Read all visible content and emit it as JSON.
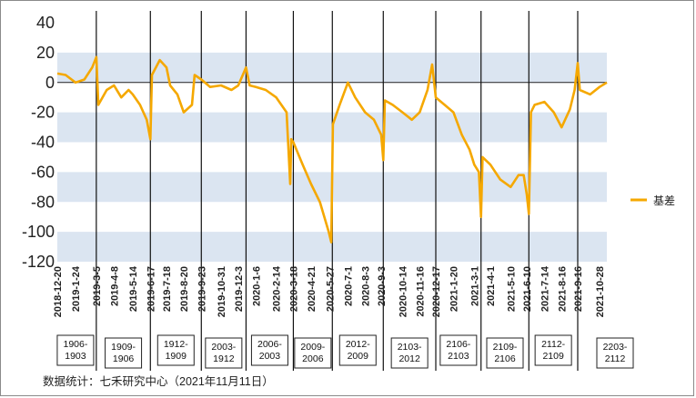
{
  "chart_data": {
    "type": "line",
    "title": "",
    "xlabel": "",
    "ylabel": "",
    "ylim": [
      -120,
      40
    ],
    "yticks": [
      40,
      20,
      0,
      -20,
      -40,
      -60,
      -80,
      -100,
      -120
    ],
    "grid": "alternating horizontal bands",
    "legend_position": "right",
    "series": [
      {
        "name": "基差",
        "color": "#f5a800",
        "points": [
          [
            "2018-12-20",
            6
          ],
          [
            "2019-1-5",
            5
          ],
          [
            "2019-1-24",
            0
          ],
          [
            "2019-2-10",
            2
          ],
          [
            "2019-2-25",
            10
          ],
          [
            "2019-3-5",
            17
          ],
          [
            "2019-3-9",
            -15
          ],
          [
            "2019-3-25",
            -5
          ],
          [
            "2019-4-8",
            -2
          ],
          [
            "2019-4-22",
            -10
          ],
          [
            "2019-5-6",
            -5
          ],
          [
            "2019-5-14",
            -8
          ],
          [
            "2019-5-28",
            -15
          ],
          [
            "2019-6-10",
            -25
          ],
          [
            "2019-6-17",
            -38
          ],
          [
            "2019-6-20",
            5
          ],
          [
            "2019-7-5",
            15
          ],
          [
            "2019-7-18",
            10
          ],
          [
            "2019-7-25",
            -2
          ],
          [
            "2019-8-8",
            -8
          ],
          [
            "2019-8-20",
            -20
          ],
          [
            "2019-9-5",
            -15
          ],
          [
            "2019-9-10",
            5
          ],
          [
            "2019-9-23",
            2
          ],
          [
            "2019-10-10",
            -3
          ],
          [
            "2019-10-31",
            -2
          ],
          [
            "2019-11-20",
            -5
          ],
          [
            "2019-12-3",
            -2
          ],
          [
            "2019-12-18",
            10
          ],
          [
            "2019-12-25",
            -2
          ],
          [
            "2020-1-6",
            -3
          ],
          [
            "2020-1-25",
            -5
          ],
          [
            "2020-2-14",
            -10
          ],
          [
            "2020-3-5",
            -20
          ],
          [
            "2020-3-12",
            -68
          ],
          [
            "2020-3-14",
            -38
          ],
          [
            "2020-3-18",
            -40
          ],
          [
            "2020-4-5",
            -55
          ],
          [
            "2020-4-21",
            -68
          ],
          [
            "2020-5-8",
            -80
          ],
          [
            "2020-5-25",
            -100
          ],
          [
            "2020-5-30",
            -107
          ],
          [
            "2020-6-2",
            -28
          ],
          [
            "2020-6-15",
            -15
          ],
          [
            "2020-7-1",
            0
          ],
          [
            "2020-7-15",
            -10
          ],
          [
            "2020-8-3",
            -20
          ],
          [
            "2020-8-20",
            -25
          ],
          [
            "2020-9-3",
            -35
          ],
          [
            "2020-9-7",
            -52
          ],
          [
            "2020-9-10",
            -12
          ],
          [
            "2020-9-25",
            -15
          ],
          [
            "2020-10-14",
            -20
          ],
          [
            "2020-11-1",
            -25
          ],
          [
            "2020-11-16",
            -20
          ],
          [
            "2020-12-1",
            -5
          ],
          [
            "2020-12-10",
            12
          ],
          [
            "2020-12-17",
            -10
          ],
          [
            "2021-1-3",
            -15
          ],
          [
            "2021-1-20",
            -20
          ],
          [
            "2021-2-5",
            -35
          ],
          [
            "2021-2-20",
            -45
          ],
          [
            "2021-3-1",
            -55
          ],
          [
            "2021-3-10",
            -60
          ],
          [
            "2021-3-14",
            -90
          ],
          [
            "2021-3-17",
            -50
          ],
          [
            "2021-4-1",
            -55
          ],
          [
            "2021-4-20",
            -65
          ],
          [
            "2021-5-10",
            -70
          ],
          [
            "2021-5-25",
            -62
          ],
          [
            "2021-6-4",
            -62
          ],
          [
            "2021-6-10",
            -75
          ],
          [
            "2021-6-14",
            -88
          ],
          [
            "2021-6-18",
            -20
          ],
          [
            "2021-6-25",
            -15
          ],
          [
            "2021-7-14",
            -13
          ],
          [
            "2021-8-1",
            -20
          ],
          [
            "2021-8-16",
            -30
          ],
          [
            "2021-9-1",
            -18
          ],
          [
            "2021-9-10",
            -5
          ],
          [
            "2021-9-16",
            13
          ],
          [
            "2021-9-20",
            -5
          ],
          [
            "2021-10-10",
            -8
          ],
          [
            "2021-10-28",
            -3
          ],
          [
            "2021-11-11",
            0
          ]
        ]
      }
    ],
    "xtick_labels": [
      "2018-12-20",
      "2019-1-24",
      "2019-3-5",
      "2019-4-8",
      "2019-5-14",
      "2019-6-17",
      "2019-7-18",
      "2019-8-20",
      "2019-9-23",
      "2019-10-31",
      "2019-12-3",
      "2020-1-6",
      "2020-2-14",
      "2020-3-18",
      "2020-4-21",
      "2020-5-27",
      "2020-7-1",
      "2020-8-3",
      "2020-9-3",
      "2020-10-14",
      "2020-11-16",
      "2020-12-17",
      "2021-1-20",
      "2021-3-1",
      "2021-4-1",
      "2021-5-10",
      "2021-6-10",
      "2021-7-14",
      "2021-8-16",
      "2021-9-16",
      "2021-10-28"
    ],
    "contract_boundaries": [
      "2019-3-5",
      "2019-6-17",
      "2019-9-23",
      "2019-12-18",
      "2020-3-18",
      "2020-6-1",
      "2020-9-7",
      "2020-12-17",
      "2021-3-14",
      "2021-6-14",
      "2021-9-16"
    ],
    "contract_labels": [
      [
        "1906-",
        "1903"
      ],
      [
        "1909-",
        "1906"
      ],
      [
        "1912-",
        "1909"
      ],
      [
        "2003-",
        "1912"
      ],
      [
        "2006-",
        "2003"
      ],
      [
        "2009-",
        "2006"
      ],
      [
        "2012-",
        "2009"
      ],
      [
        "2103-",
        "2012"
      ],
      [
        "2106-",
        "2103"
      ],
      [
        "2109-",
        "2106"
      ],
      [
        "2112-",
        "2109"
      ],
      [
        "2203-",
        "2112"
      ]
    ]
  },
  "source_text": "数据统计：七禾研究中心（2021年11月11日）"
}
